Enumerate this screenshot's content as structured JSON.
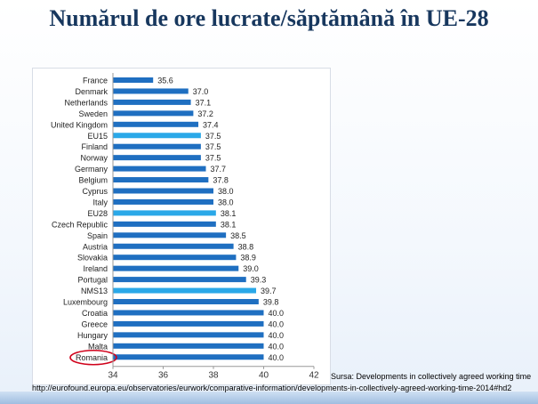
{
  "title": "Numărul de ore lucrate/săptămână în UE-28",
  "source_note": "Sursa: Developments in collectively agreed working time",
  "source_url": "http://eurofound.europa.eu/observatories/eurwork/comparative-information/developments-in-collectively-agreed-working-time-2014#hd2",
  "highlighted_country": "Romania",
  "colors": {
    "bar": "#1f6fc1",
    "aggregate_bar": "#2aa8e8",
    "highlight_circle": "#d0021b",
    "title": "#17375e"
  },
  "chart_data": {
    "type": "bar",
    "orientation": "horizontal",
    "title": "",
    "xlabel": "",
    "ylabel": "",
    "xlim": [
      34,
      42
    ],
    "xticks": [
      34,
      36,
      38,
      40,
      42
    ],
    "grid": false,
    "categories": [
      "France",
      "Denmark",
      "Netherlands",
      "Sweden",
      "United Kingdom",
      "EU15",
      "Finland",
      "Norway",
      "Germany",
      "Belgium",
      "Cyprus",
      "Italy",
      "EU28",
      "Czech Republic",
      "Spain",
      "Austria",
      "Slovakia",
      "Ireland",
      "Portugal",
      "NMS13",
      "Luxembourg",
      "Croatia",
      "Greece",
      "Hungary",
      "Malta",
      "Romania"
    ],
    "values": [
      35.6,
      37.0,
      37.1,
      37.2,
      37.4,
      37.5,
      37.5,
      37.5,
      37.7,
      37.8,
      38.0,
      38.0,
      38.1,
      38.1,
      38.5,
      38.8,
      38.9,
      39.0,
      39.3,
      39.7,
      39.8,
      40.0,
      40.0,
      40.0,
      40.0,
      40.0
    ],
    "value_labels": [
      "35.6",
      "37.0",
      "37.1",
      "37.2",
      "37.4",
      "37.5",
      "37.5",
      "37.5",
      "37.7",
      "37.8",
      "38.0",
      "38.0",
      "38.1",
      "38.1",
      "38.5",
      "38.8",
      "38.9",
      "39.0",
      "39.3",
      "39.7",
      "39.8",
      "40.0",
      "40.0",
      "40.0",
      "40.0",
      "40.0"
    ],
    "aggregate_categories": [
      "EU15",
      "EU28",
      "NMS13"
    ]
  }
}
